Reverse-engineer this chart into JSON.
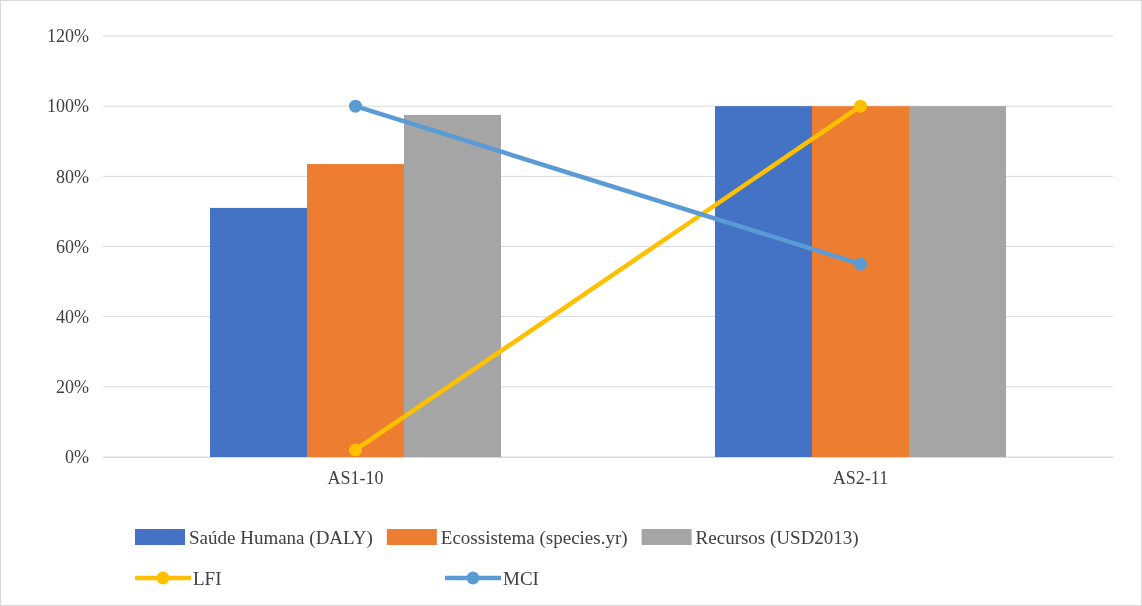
{
  "chart_data": {
    "type": "bar",
    "categories": [
      "AS1-10",
      "AS2-11"
    ],
    "series": [
      {
        "name": "Saúde Humana (DALY)",
        "color": "#4472c4",
        "values": [
          71,
          100
        ]
      },
      {
        "name": "Ecossistema (species.yr)",
        "color": "#ed7d31",
        "values": [
          83.5,
          100
        ]
      },
      {
        "name": "Recursos (USD2013)",
        "color": "#a5a5a5",
        "values": [
          97.5,
          100
        ]
      },
      {
        "name": "LFI",
        "type": "line",
        "color": "#ffc000",
        "values": [
          2,
          100
        ]
      },
      {
        "name": "MCI",
        "type": "line",
        "color": "#5b9bd5",
        "values": [
          100,
          55
        ]
      }
    ],
    "ylim": [
      0,
      120
    ],
    "yticks": [
      {
        "value": 0,
        "label": "0%"
      },
      {
        "value": 20,
        "label": "20%"
      },
      {
        "value": 40,
        "label": "40%"
      },
      {
        "value": 60,
        "label": "60%"
      },
      {
        "value": 80,
        "label": "80%"
      },
      {
        "value": 100,
        "label": "100%"
      },
      {
        "value": 120,
        "label": "120%"
      }
    ],
    "grid": "y",
    "legend": "bottom",
    "marker": "circle",
    "line_style": "solid"
  }
}
